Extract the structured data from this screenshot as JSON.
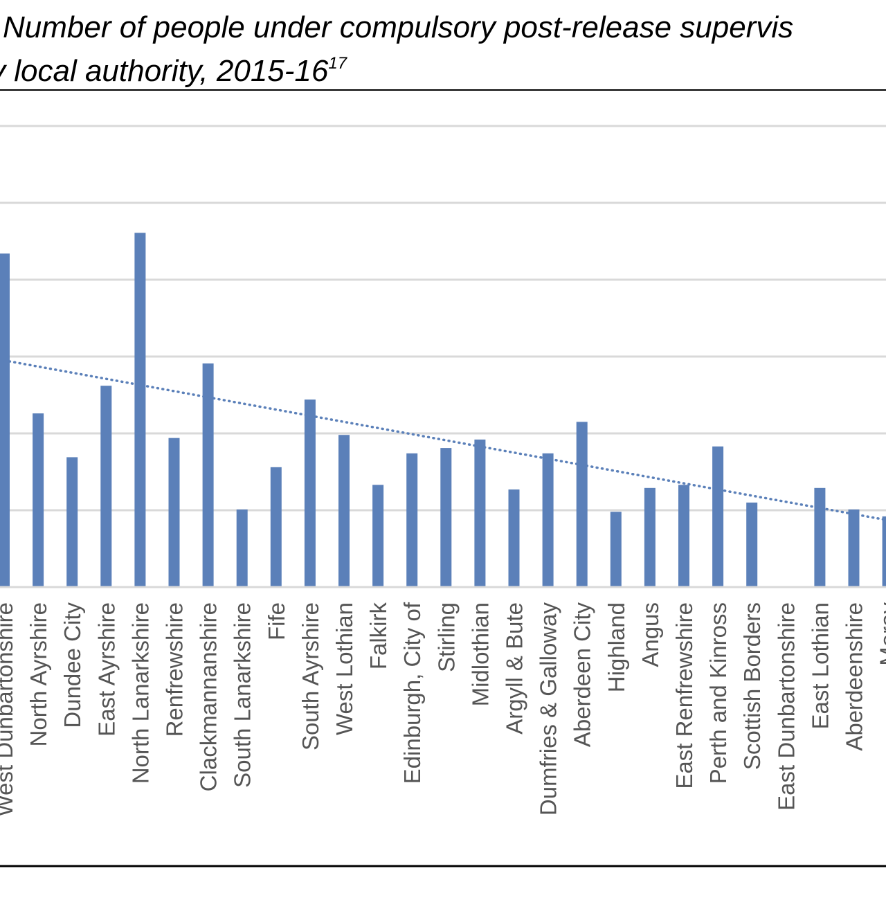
{
  "title": {
    "line1": "Number of people under compulsory post-release supervis",
    "line2_prefix": "y local authority, 2015-16",
    "line2_sup": "17"
  },
  "colors": {
    "bar": "#5b80b9",
    "trend": "#5b80b9",
    "grid": "#d9d9d9",
    "rule": "#000000",
    "label": "#555555"
  },
  "chart_data": {
    "type": "bar",
    "title": "Number of people under compulsory post-release supervis y local authority, 2015-16",
    "xlabel": "",
    "ylabel": "",
    "ylim": [
      0,
      6
    ],
    "grid": true,
    "legend": "none",
    "trendline": {
      "type": "linear",
      "style": "dotted",
      "values_at_categories": [
        2.95,
        2.87,
        2.79,
        2.71,
        2.63,
        2.55,
        2.47,
        2.39,
        2.31,
        2.23,
        2.15,
        2.07,
        1.99,
        1.91,
        1.83,
        1.75,
        1.67,
        1.59,
        1.51,
        1.43,
        1.35,
        1.27,
        1.19,
        1.11,
        1.03,
        0.95,
        0.87
      ]
    },
    "categories": [
      "West Dunbartonshire",
      "North Ayrshire",
      "Dundee City",
      "East Ayrshire",
      "North Lanarkshire",
      "Renfrewshire",
      "Clackmannanshire",
      "South Lanarkshire",
      "Fife",
      "South Ayrshire",
      "West Lothian",
      "Falkirk",
      "Edinburgh, City of",
      "Stirling",
      "Midlothian",
      "Argyll & Bute",
      "Dumfries & Galloway",
      "Aberdeen City",
      "Highland",
      "Angus",
      "East Renfrewshire",
      "Perth and Kinross",
      "Scottish Borders",
      "East Dunbartonshire",
      "East Lothian",
      "Aberdeenshire",
      "Moray"
    ],
    "values": [
      4.34,
      2.26,
      1.69,
      2.62,
      4.61,
      1.94,
      2.91,
      1.01,
      1.56,
      2.44,
      1.98,
      1.33,
      1.74,
      1.81,
      1.92,
      1.27,
      1.74,
      2.15,
      0.98,
      1.29,
      1.33,
      1.83,
      1.1,
      0.0,
      1.29,
      1.01,
      0.92
    ]
  }
}
